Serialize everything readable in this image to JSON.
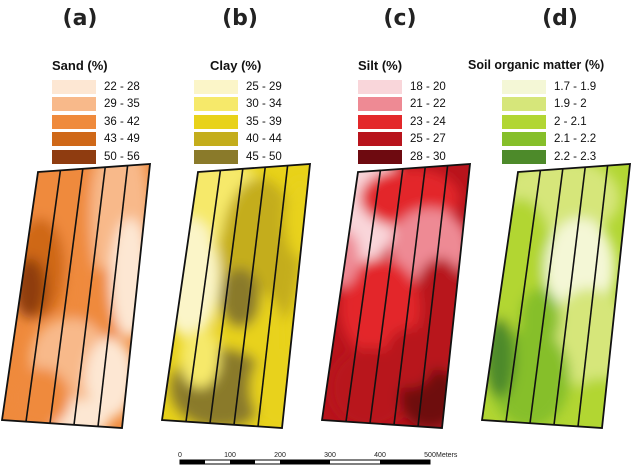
{
  "panels": [
    {
      "label": "(a)",
      "legend_title": "Sand (%)",
      "legend": [
        {
          "range": "22 - 28",
          "color": "#fde7d3"
        },
        {
          "range": "29 - 35",
          "color": "#f8b98a"
        },
        {
          "range": "36 - 42",
          "color": "#ef8a3c"
        },
        {
          "range": "43 - 49",
          "color": "#cf6818"
        },
        {
          "range": "50 - 56",
          "color": "#8f3c10"
        }
      ]
    },
    {
      "label": "(b)",
      "legend_title": "Clay (%)",
      "legend": [
        {
          "range": "25 - 29",
          "color": "#fbf5c8"
        },
        {
          "range": "30 - 34",
          "color": "#f6e96a"
        },
        {
          "range": "35 - 39",
          "color": "#e8d21a"
        },
        {
          "range": "40 - 44",
          "color": "#c4ad1c"
        },
        {
          "range": "45 - 50",
          "color": "#8a7a2a"
        }
      ]
    },
    {
      "label": "(c)",
      "legend_title": "Silt (%)",
      "legend": [
        {
          "range": "18 - 20",
          "color": "#f9d6da"
        },
        {
          "range": "21 - 22",
          "color": "#ee8a94"
        },
        {
          "range": "23 - 24",
          "color": "#e3282a"
        },
        {
          "range": "25 - 27",
          "color": "#b8141c"
        },
        {
          "range": "28 - 30",
          "color": "#6e0a10"
        }
      ]
    },
    {
      "label": "(d)",
      "legend_title": "Soil organic matter (%)",
      "legend": [
        {
          "range": "1.7 - 1.9",
          "color": "#f4f7d6"
        },
        {
          "range": "1.9 - 2",
          "color": "#d6e67a"
        },
        {
          "range": "2 - 2.1",
          "color": "#b2d633"
        },
        {
          "range": "2.1 - 2.2",
          "color": "#86bf2a"
        },
        {
          "range": "2.2 - 2.3",
          "color": "#4d8a2a"
        }
      ]
    }
  ],
  "scale_bar": {
    "ticks": [
      "0",
      "100",
      "200",
      "300",
      "400",
      "500"
    ],
    "unit": "Meters"
  }
}
